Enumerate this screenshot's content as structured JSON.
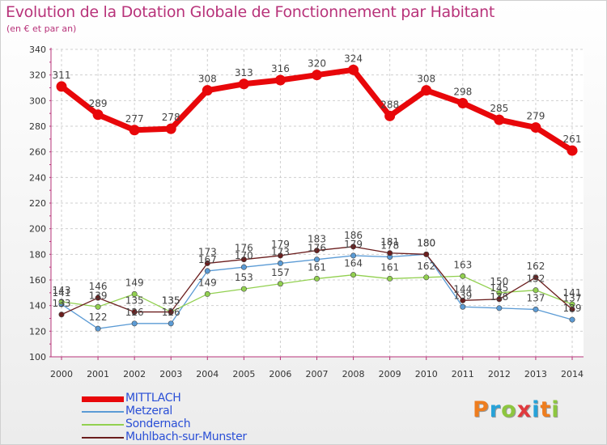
{
  "header": {
    "title": "Evolution de la Dotation Globale de Fonctionnement par Habitant",
    "subtitle": "(en € et par an)"
  },
  "logo": {
    "text": "Proxiti",
    "colors": [
      "#ee7d1e",
      "#27a2d8",
      "#8dc63f",
      "#e03a3e",
      "#27a2d8",
      "#ee7d1e",
      "#8dc63f"
    ]
  },
  "chart_data": {
    "type": "line",
    "title": "Evolution de la Dotation Globale de Fonctionnement par Habitant",
    "subtitle": "(en € et par an)",
    "xlabel": "",
    "ylabel": "",
    "x": [
      "2000",
      "2001",
      "2002",
      "2003",
      "2004",
      "2005",
      "2006",
      "2007",
      "2008",
      "2009",
      "2010",
      "2011",
      "2012",
      "2013",
      "2014"
    ],
    "ylim": [
      100,
      340
    ],
    "yticks": [
      100,
      120,
      140,
      160,
      180,
      200,
      220,
      240,
      260,
      280,
      300,
      320,
      340
    ],
    "grid": true,
    "legend": "bottom-left",
    "series": [
      {
        "name": "MITTLACH",
        "color": "#e8070a",
        "values": [
          311,
          289,
          277,
          278,
          308,
          313,
          316,
          320,
          324,
          288,
          308,
          298,
          285,
          279,
          261
        ],
        "labels": [
          "311",
          "289",
          "277",
          "278",
          "308",
          "313",
          "316",
          "320",
          "324",
          "288",
          "308",
          "298",
          "285",
          "279",
          "261"
        ]
      },
      {
        "name": "Metzeral",
        "color": "#5b9bd5",
        "values": [
          141,
          122,
          126,
          126,
          167,
          170,
          173,
          176,
          179,
          178,
          180,
          139,
          138,
          137,
          129
        ],
        "labels": [
          "141",
          "122",
          "126",
          "126",
          "167",
          "170",
          "173",
          "176",
          "179",
          "178",
          "180",
          "139",
          "138",
          "137",
          "129"
        ]
      },
      {
        "name": "Sondernach",
        "color": "#92d050",
        "values": [
          143,
          139,
          149,
          135,
          149,
          153,
          157,
          161,
          164,
          161,
          162,
          163,
          150,
          152,
          141
        ],
        "labels": [
          "143",
          "139",
          "149",
          "135",
          "149",
          "153",
          "157",
          "161",
          "164",
          "161",
          "162",
          "163",
          "150",
          "152",
          "141"
        ]
      },
      {
        "name": "Muhlbach-sur-Munster",
        "color": "#6b1e1e",
        "values": [
          133,
          146,
          135,
          135,
          173,
          176,
          179,
          183,
          186,
          181,
          180,
          144,
          145,
          162,
          137
        ],
        "labels": [
          "133",
          "146",
          "135",
          "135",
          "173",
          "176",
          "179",
          "183",
          "186",
          "181",
          "180",
          "144",
          "145",
          "162",
          "137"
        ]
      }
    ]
  }
}
